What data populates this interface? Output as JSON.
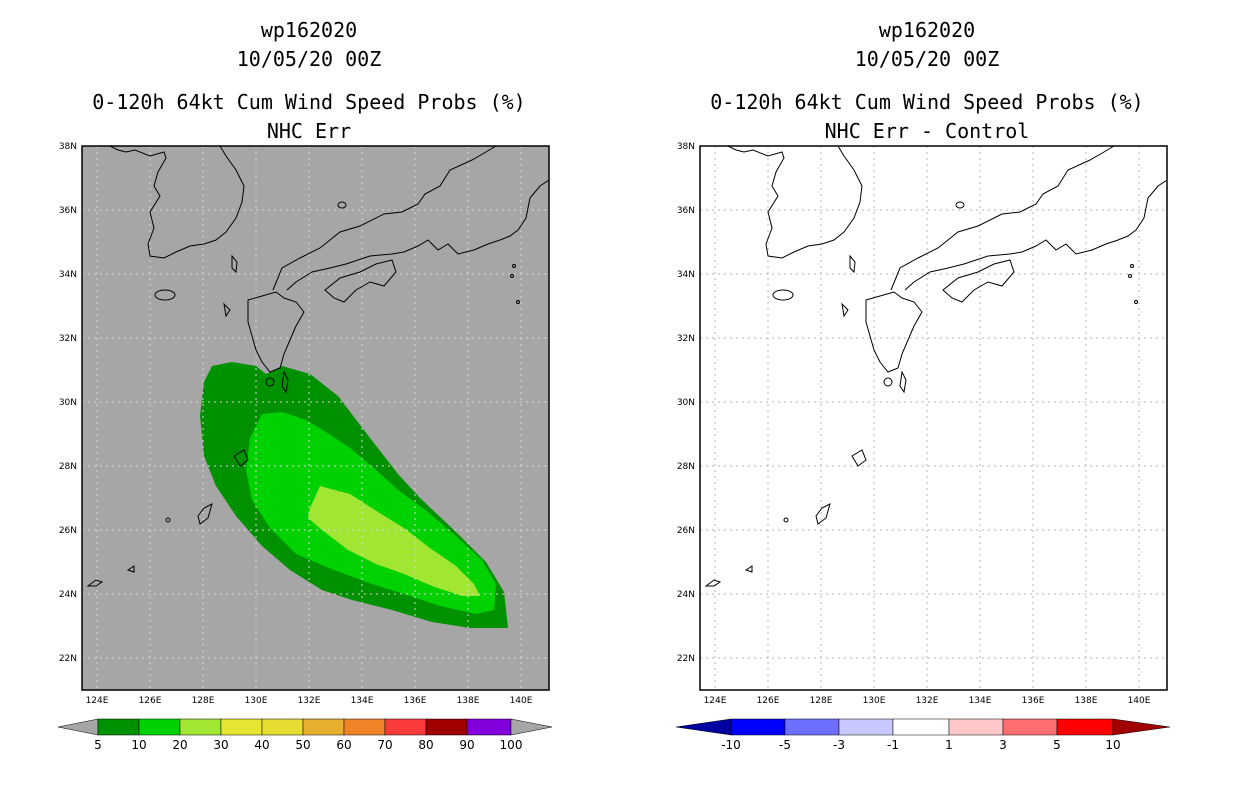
{
  "left_panel": {
    "storm_id": "wp162020",
    "datetime": "10/05/20 00Z",
    "product_title": "0-120h 64kt Cum Wind Speed Probs (%)",
    "subtitle": "NHC Err",
    "background_color": "#a6a6a6",
    "colorbar": {
      "labels": [
        "5",
        "10",
        "20",
        "30",
        "40",
        "50",
        "60",
        "70",
        "80",
        "90",
        "100"
      ],
      "colors": [
        "#009100",
        "#00d100",
        "#a0e632",
        "#e6e632",
        "#e6dc32",
        "#e6af2d",
        "#f08228",
        "#fa3c3c",
        "#a00000",
        "#8200dc"
      ]
    }
  },
  "right_panel": {
    "storm_id": "wp162020",
    "datetime": "10/05/20 00Z",
    "product_title": "0-120h 64kt Cum Wind Speed Probs (%)",
    "subtitle": "NHC Err - Control",
    "background_color": "#ffffff",
    "colorbar": {
      "labels": [
        "-10",
        "-5",
        "-3",
        "-1",
        "1",
        "3",
        "5",
        "10"
      ],
      "colors": [
        "#0000a0",
        "#0000ff",
        "#6e6eff",
        "#c8c8ff",
        "#ffffff",
        "#ffc8c8",
        "#ff6e6e",
        "#ff0000",
        "#a00000"
      ]
    }
  },
  "axes": {
    "lat_labels": [
      "38N",
      "36N",
      "34N",
      "32N",
      "30N",
      "28N",
      "26N",
      "24N",
      "22N"
    ],
    "lon_labels": [
      "124E",
      "126E",
      "128E",
      "130E",
      "132E",
      "134E",
      "136E",
      "138E",
      "140E"
    ]
  },
  "probability_contours": [
    {
      "level": "5",
      "color": "#009100"
    },
    {
      "level": "10",
      "color": "#00d100"
    },
    {
      "level": "20",
      "color": "#a0e632"
    }
  ]
}
